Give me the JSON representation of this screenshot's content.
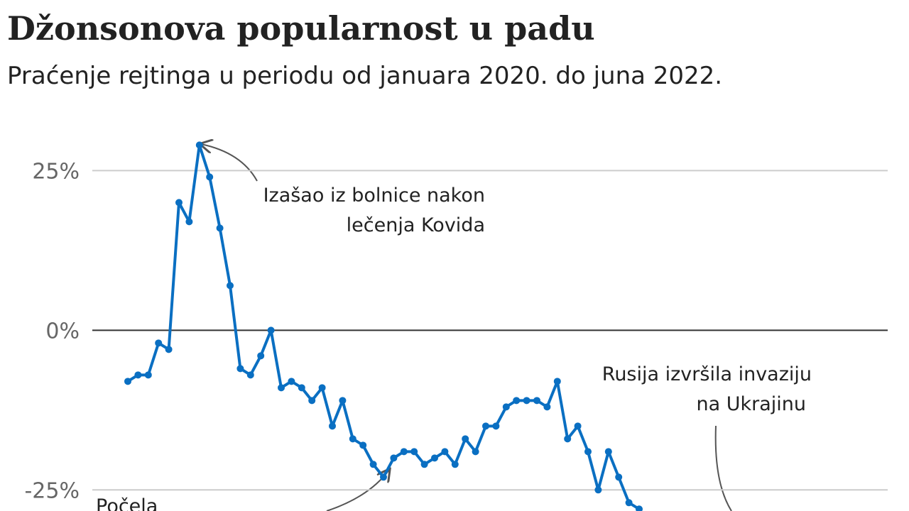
{
  "chart_data": {
    "type": "line",
    "title": "Džonsonova popularnost u padu",
    "subtitle": "Praćenje rejtinga u periodu od januara 2020. do juna 2022.",
    "annotations": [
      "Izašao iz bolnice nakon",
      "lečenja Kovida",
      "Rusija izvršila invaziju",
      "na Ukrajinu",
      "Počela"
    ],
    "categories": [
      null,
      null,
      null,
      null,
      null,
      null,
      null,
      null,
      null,
      null,
      null,
      null,
      null,
      null,
      null,
      null,
      null,
      null,
      null,
      null,
      null,
      null,
      null,
      null,
      null,
      null,
      null,
      null,
      null,
      null,
      null,
      null,
      null,
      null,
      null,
      null,
      null,
      null,
      null,
      null,
      null,
      null,
      null,
      null,
      null,
      null,
      null,
      null,
      null,
      null,
      null
    ],
    "values": [
      -8,
      -7,
      -7,
      -2,
      -3,
      20,
      17,
      29,
      24,
      16,
      7,
      -6,
      -7,
      -4,
      0,
      -9,
      -8,
      -9,
      -11,
      -9,
      -15,
      -11,
      -17,
      -18,
      -21,
      -23,
      -20,
      -19,
      -19,
      -21,
      -20,
      -19,
      -21,
      -17,
      -19,
      -15,
      -15,
      -12,
      -11,
      -11,
      -11,
      -12,
      -8,
      -17,
      -15,
      -19,
      -25,
      -19,
      -23,
      -27,
      -28
    ],
    "color": "#0a6fc2",
    "ylim": [
      -28.3,
      30.6
    ],
    "yticks": [
      {
        "value": -25,
        "label": "-25%"
      },
      {
        "value": 0,
        "label": "0%"
      },
      {
        "value": 25,
        "label": "25%"
      }
    ],
    "grid": true
  }
}
